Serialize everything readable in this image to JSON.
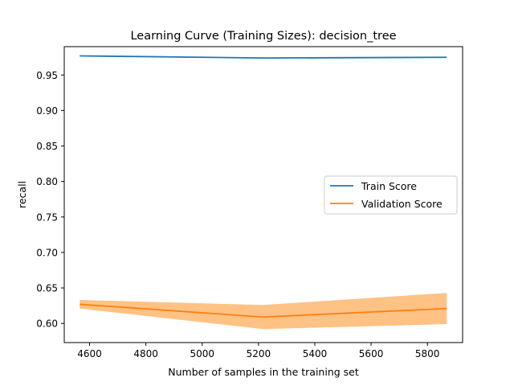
{
  "chart_data": {
    "type": "line",
    "title": "Learning Curve (Training Sizes): decision_tree",
    "xlabel": "Number of samples in the training set",
    "ylabel": "recall",
    "xlim": [
      4510,
      5925
    ],
    "ylim": [
      0.573,
      0.99
    ],
    "x_ticks": [
      4600,
      4800,
      5000,
      5200,
      5400,
      5600,
      5800
    ],
    "y_ticks": [
      0.6,
      0.65,
      0.7,
      0.75,
      0.8,
      0.85,
      0.9,
      0.95
    ],
    "x": [
      4565,
      5217,
      5869
    ],
    "series": [
      {
        "name": "Train Score",
        "color": "#1f77b4",
        "values": [
          0.977,
          0.974,
          0.975
        ]
      },
      {
        "name": "Validation Score",
        "color": "#ff7f0e",
        "band_color": "#ffbb78",
        "values": [
          0.627,
          0.609,
          0.621
        ],
        "lower": [
          0.621,
          0.592,
          0.599
        ],
        "upper": [
          0.633,
          0.626,
          0.643
        ]
      }
    ],
    "legend_position": "center-right",
    "grid": false
  }
}
